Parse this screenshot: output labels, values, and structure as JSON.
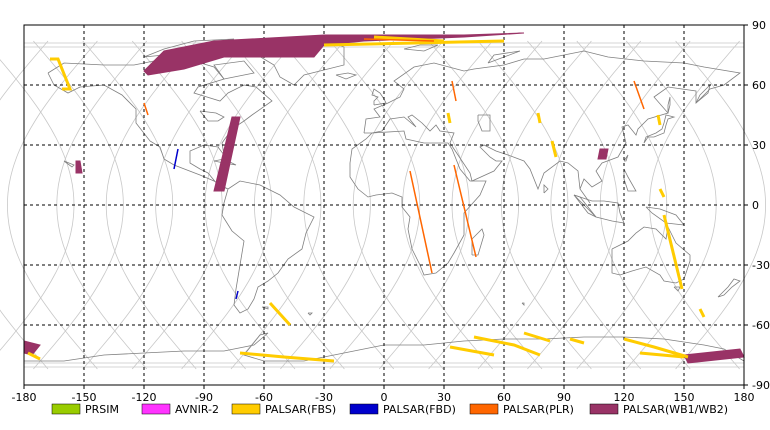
{
  "map": {
    "x_axis": {
      "min": -180,
      "max": 180,
      "ticks": [
        -180,
        -150,
        -120,
        -90,
        -60,
        -30,
        0,
        30,
        60,
        90,
        120,
        150,
        180
      ]
    },
    "y_axis": {
      "min": -90,
      "max": 90,
      "ticks": [
        90,
        60,
        30,
        0,
        -30,
        -60,
        -90
      ]
    },
    "grid": true,
    "grid_style": "dashed",
    "orbit_color": "#c8c8c8",
    "coast_color": "#808080"
  },
  "legend": [
    {
      "label": "PRSIM",
      "color": "#99cc00"
    },
    {
      "label": "AVNIR-2",
      "color": "#ff33ff"
    },
    {
      "label": "PALSAR(FBS)",
      "color": "#ffcc00"
    },
    {
      "label": "PALSAR(FBD)",
      "color": "#0000cc"
    },
    {
      "label": "PALSAR(PLR)",
      "color": "#ff6600"
    },
    {
      "label": "PALSAR(WB1/WB2)",
      "color": "#993366"
    }
  ],
  "swaths": [
    {
      "name": "wb-arctic-canada",
      "mode": "PALSAR(WB1/WB2)",
      "points": [
        [
          -120,
          67
        ],
        [
          -110,
          77
        ],
        [
          -85,
          82
        ],
        [
          -30,
          85
        ],
        [
          40,
          85
        ],
        [
          70,
          86
        ],
        [
          40,
          84
        ],
        [
          -10,
          82
        ],
        [
          -30,
          80
        ],
        [
          -35,
          74
        ],
        [
          -45,
          74
        ],
        [
          -80,
          74
        ],
        [
          -100,
          68
        ],
        [
          -118,
          65
        ]
      ]
    },
    {
      "name": "wb-central-america",
      "mode": "PALSAR(WB1/WB2)",
      "points": [
        [
          -76,
          44
        ],
        [
          -72,
          44
        ],
        [
          -80,
          7
        ],
        [
          -85,
          7
        ]
      ]
    },
    {
      "name": "wb-hawaii",
      "mode": "PALSAR(WB1/WB2)",
      "points": [
        [
          -154,
          22
        ],
        [
          -152,
          22
        ],
        [
          -151,
          16
        ],
        [
          -154,
          16
        ]
      ]
    },
    {
      "name": "wb-china",
      "mode": "PALSAR(WB1/WB2)",
      "points": [
        [
          108,
          28
        ],
        [
          112,
          28
        ],
        [
          111,
          23
        ],
        [
          107,
          23
        ]
      ]
    },
    {
      "name": "wb-antarctic-west",
      "mode": "PALSAR(WB1/WB2)",
      "points": [
        [
          -180,
          -68
        ],
        [
          -172,
          -70
        ],
        [
          -176,
          -75
        ],
        [
          -180,
          -74
        ]
      ]
    },
    {
      "name": "wb-antarctic-east",
      "mode": "PALSAR(WB1/WB2)",
      "points": [
        [
          150,
          -75
        ],
        [
          178,
          -72
        ],
        [
          180,
          -76
        ],
        [
          152,
          -79
        ]
      ]
    },
    {
      "name": "fbs-alaska",
      "mode": "PALSAR(FBS)",
      "points": [
        [
          -167,
          73
        ],
        [
          -163,
          73
        ],
        [
          -157,
          58
        ],
        [
          -161,
          58
        ]
      ]
    },
    {
      "name": "fbs-patagonia",
      "mode": "PALSAR(FBS)",
      "points": [
        [
          -57,
          -49
        ],
        [
          -47,
          -60
        ]
      ]
    },
    {
      "name": "fbs-antarctic-1",
      "mode": "PALSAR(FBS)",
      "points": [
        [
          -72,
          -74
        ],
        [
          -50,
          -76
        ],
        [
          -25,
          -78
        ]
      ]
    },
    {
      "name": "fbs-antarctic-2",
      "mode": "PALSAR(FBS)",
      "points": [
        [
          33,
          -71
        ],
        [
          55,
          -75
        ]
      ]
    },
    {
      "name": "fbs-antarctic-3",
      "mode": "PALSAR(FBS)",
      "points": [
        [
          45,
          -66
        ],
        [
          65,
          -70
        ],
        [
          78,
          -75
        ]
      ]
    },
    {
      "name": "fbs-antarctic-4",
      "mode": "PALSAR(FBS)",
      "points": [
        [
          70,
          -64
        ],
        [
          83,
          -68
        ]
      ]
    },
    {
      "name": "fbs-antarctic-5",
      "mode": "PALSAR(FBS)",
      "points": [
        [
          93,
          -67
        ],
        [
          100,
          -69
        ]
      ]
    },
    {
      "name": "fbs-antarctic-6",
      "mode": "PALSAR(FBS)",
      "points": [
        [
          120,
          -67
        ],
        [
          135,
          -71
        ],
        [
          152,
          -76
        ]
      ]
    },
    {
      "name": "fbs-antarctic-7",
      "mode": "PALSAR(FBS)",
      "points": [
        [
          128,
          -74
        ],
        [
          150,
          -76
        ]
      ]
    },
    {
      "name": "fbs-australia",
      "mode": "PALSAR(FBS)",
      "points": [
        [
          140,
          -5
        ],
        [
          149,
          -42
        ]
      ]
    },
    {
      "name": "fbs-new-zealand",
      "mode": "PALSAR(FBS)",
      "points": [
        [
          158,
          -52
        ],
        [
          160,
          -56
        ]
      ]
    },
    {
      "name": "fbs-png",
      "mode": "PALSAR(FBS)",
      "points": [
        [
          138,
          8
        ],
        [
          140,
          4
        ]
      ]
    },
    {
      "name": "fbs-india",
      "mode": "PALSAR(FBS)",
      "points": [
        [
          84,
          32
        ],
        [
          86,
          24
        ]
      ]
    },
    {
      "name": "fbs-mongolia",
      "mode": "PALSAR(FBS)",
      "points": [
        [
          77,
          46
        ],
        [
          78,
          41
        ]
      ]
    },
    {
      "name": "fbs-arctic-1",
      "mode": "PALSAR(FBS)",
      "points": [
        [
          -5,
          84
        ],
        [
          30,
          82
        ]
      ]
    },
    {
      "name": "fbs-arctic-2",
      "mode": "PALSAR(FBS)",
      "points": [
        [
          -30,
          80
        ],
        [
          60,
          82
        ]
      ]
    },
    {
      "name": "fbs-russia",
      "mode": "PALSAR(FBS)",
      "points": [
        [
          32,
          46
        ],
        [
          33,
          41
        ]
      ]
    },
    {
      "name": "fbs-kazakhstan",
      "mode": "PALSAR(FBS)",
      "points": [
        [
          137,
          45
        ],
        [
          138,
          40
        ]
      ]
    },
    {
      "name": "fbs-antarctic-8",
      "mode": "PALSAR(FBS)",
      "points": [
        [
          -178,
          -74
        ],
        [
          -172,
          -77
        ]
      ]
    },
    {
      "name": "fbd-mexico",
      "mode": "PALSAR(FBD)",
      "points": [
        [
          -103,
          28
        ],
        [
          -105,
          18
        ]
      ]
    },
    {
      "name": "fbd-chile",
      "mode": "PALSAR(FBD)",
      "points": [
        [
          -73,
          -43
        ],
        [
          -74,
          -47
        ]
      ]
    },
    {
      "name": "plr-africa-1",
      "mode": "PALSAR(PLR)",
      "points": [
        [
          13,
          17
        ],
        [
          24,
          -34
        ]
      ]
    },
    {
      "name": "plr-africa-2",
      "mode": "PALSAR(PLR)",
      "points": [
        [
          35,
          20
        ],
        [
          46,
          -26
        ]
      ]
    },
    {
      "name": "plr-arabia",
      "mode": "PALSAR(PLR)",
      "points": [
        [
          34,
          62
        ],
        [
          36,
          52
        ]
      ]
    },
    {
      "name": "plr-siberia",
      "mode": "PALSAR(PLR)",
      "points": [
        [
          125,
          62
        ],
        [
          130,
          48
        ]
      ]
    },
    {
      "name": "plr-mexico",
      "mode": "PALSAR(PLR)",
      "points": [
        [
          -120,
          51
        ],
        [
          -118,
          45
        ]
      ]
    },
    {
      "name": "plr-arctic",
      "mode": "PALSAR(PLR)",
      "points": [
        [
          -10,
          83
        ],
        [
          25,
          82
        ]
      ]
    }
  ]
}
